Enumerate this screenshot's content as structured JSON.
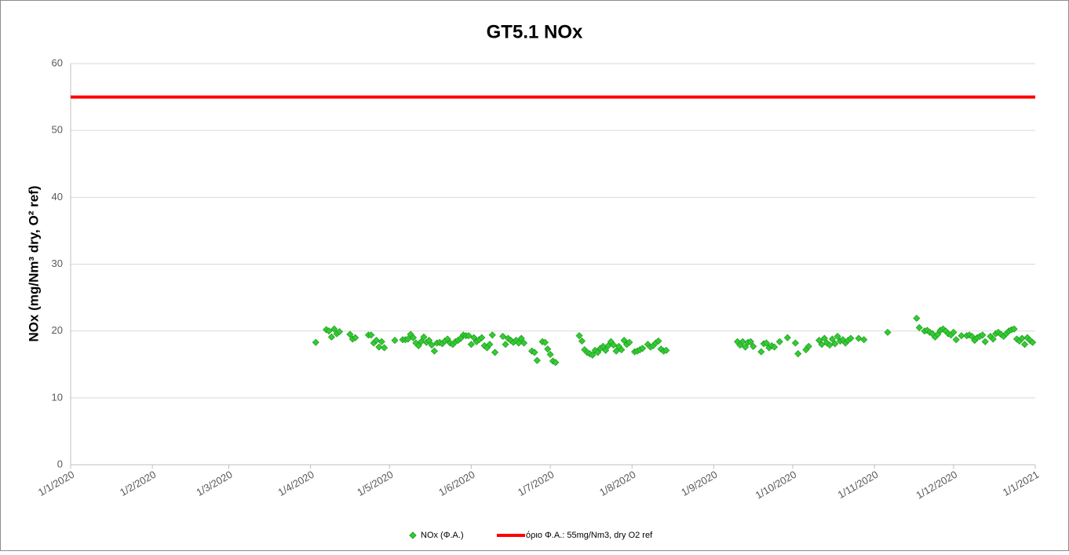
{
  "chart_data": {
    "type": "scatter",
    "title": "GT5.1 NOx",
    "y_label": "NOx (mg/Nm³ dry, O² ref)",
    "xlim": [
      "2020-01-01",
      "2021-01-01"
    ],
    "xticks": [
      {
        "value": "2020-01-01",
        "label": "1/1/2020"
      },
      {
        "value": "2020-02-01",
        "label": "1/2/2020"
      },
      {
        "value": "2020-03-01",
        "label": "1/3/2020"
      },
      {
        "value": "2020-04-01",
        "label": "1/4/2020"
      },
      {
        "value": "2020-05-01",
        "label": "1/5/2020"
      },
      {
        "value": "2020-06-01",
        "label": "1/6/2020"
      },
      {
        "value": "2020-07-01",
        "label": "1/7/2020"
      },
      {
        "value": "2020-08-01",
        "label": "1/8/2020"
      },
      {
        "value": "2020-09-01",
        "label": "1/9/2020"
      },
      {
        "value": "2020-10-01",
        "label": "1/10/2020"
      },
      {
        "value": "2020-11-01",
        "label": "1/11/2020"
      },
      {
        "value": "2020-12-01",
        "label": "1/12/2020"
      },
      {
        "value": "2021-01-01",
        "label": "1/1/2021"
      }
    ],
    "ylim": [
      0,
      60
    ],
    "yticks": [
      0,
      10,
      20,
      30,
      40,
      50,
      60
    ],
    "grid": true,
    "legend": "bottom",
    "series": [
      {
        "name": "NOx (Φ.Α.)",
        "type": "scatter",
        "color": "#33cc33",
        "x": [
          "2020-04-03",
          "2020-04-07",
          "2020-04-08",
          "2020-04-09",
          "2020-04-10",
          "2020-04-11",
          "2020-04-12",
          "2020-04-16",
          "2020-04-17",
          "2020-04-18",
          "2020-04-23",
          "2020-04-24",
          "2020-04-25",
          "2020-04-26",
          "2020-04-27",
          "2020-04-28",
          "2020-04-29",
          "2020-05-03",
          "2020-05-06",
          "2020-05-07",
          "2020-05-08",
          "2020-05-09",
          "2020-05-10",
          "2020-05-11",
          "2020-05-12",
          "2020-05-13",
          "2020-05-14",
          "2020-05-15",
          "2020-05-16",
          "2020-05-17",
          "2020-05-18",
          "2020-05-19",
          "2020-05-20",
          "2020-05-21",
          "2020-05-22",
          "2020-05-23",
          "2020-05-24",
          "2020-05-25",
          "2020-05-26",
          "2020-05-27",
          "2020-05-28",
          "2020-05-29",
          "2020-05-30",
          "2020-05-31",
          "2020-06-01",
          "2020-06-02",
          "2020-06-03",
          "2020-06-04",
          "2020-06-05",
          "2020-06-06",
          "2020-06-07",
          "2020-06-08",
          "2020-06-09",
          "2020-06-10",
          "2020-06-13",
          "2020-06-14",
          "2020-06-15",
          "2020-06-16",
          "2020-06-17",
          "2020-06-18",
          "2020-06-19",
          "2020-06-20",
          "2020-06-21",
          "2020-06-24",
          "2020-06-25",
          "2020-06-26",
          "2020-06-28",
          "2020-06-29",
          "2020-06-30",
          "2020-07-01",
          "2020-07-02",
          "2020-07-03",
          "2020-07-12",
          "2020-07-13",
          "2020-07-14",
          "2020-07-15",
          "2020-07-16",
          "2020-07-17",
          "2020-07-18",
          "2020-07-19",
          "2020-07-20",
          "2020-07-21",
          "2020-07-22",
          "2020-07-23",
          "2020-07-24",
          "2020-07-25",
          "2020-07-26",
          "2020-07-27",
          "2020-07-28",
          "2020-07-29",
          "2020-07-30",
          "2020-07-31",
          "2020-08-02",
          "2020-08-03",
          "2020-08-04",
          "2020-08-05",
          "2020-08-07",
          "2020-08-08",
          "2020-08-09",
          "2020-08-10",
          "2020-08-11",
          "2020-08-12",
          "2020-08-13",
          "2020-08-14",
          "2020-09-10",
          "2020-09-11",
          "2020-09-12",
          "2020-09-13",
          "2020-09-14",
          "2020-09-15",
          "2020-09-16",
          "2020-09-19",
          "2020-09-20",
          "2020-09-21",
          "2020-09-22",
          "2020-09-23",
          "2020-09-24",
          "2020-09-26",
          "2020-09-29",
          "2020-10-02",
          "2020-10-03",
          "2020-10-06",
          "2020-10-07",
          "2020-10-11",
          "2020-10-12",
          "2020-10-13",
          "2020-10-14",
          "2020-10-15",
          "2020-10-16",
          "2020-10-17",
          "2020-10-18",
          "2020-10-19",
          "2020-10-20",
          "2020-10-21",
          "2020-10-22",
          "2020-10-23",
          "2020-10-26",
          "2020-10-28",
          "2020-11-06",
          "2020-11-17",
          "2020-11-18",
          "2020-11-20",
          "2020-11-21",
          "2020-11-22",
          "2020-11-23",
          "2020-11-24",
          "2020-11-25",
          "2020-11-26",
          "2020-11-27",
          "2020-11-28",
          "2020-11-29",
          "2020-11-30",
          "2020-12-01",
          "2020-12-02",
          "2020-12-04",
          "2020-12-06",
          "2020-12-07",
          "2020-12-08",
          "2020-12-09",
          "2020-12-10",
          "2020-12-11",
          "2020-12-12",
          "2020-12-13",
          "2020-12-15",
          "2020-12-16",
          "2020-12-17",
          "2020-12-18",
          "2020-12-19",
          "2020-12-20",
          "2020-12-21",
          "2020-12-22",
          "2020-12-23",
          "2020-12-24",
          "2020-12-25",
          "2020-12-26",
          "2020-12-27",
          "2020-12-28",
          "2020-12-29",
          "2020-12-30",
          "2020-12-31"
        ],
        "values": [
          18.3,
          20.2,
          20.0,
          19.1,
          20.3,
          19.6,
          19.9,
          19.5,
          18.8,
          19.0,
          19.4,
          19.4,
          18.2,
          18.6,
          17.6,
          18.4,
          17.5,
          18.6,
          18.7,
          18.7,
          18.8,
          19.5,
          19.0,
          18.2,
          17.8,
          18.4,
          19.1,
          18.3,
          18.6,
          17.9,
          17.0,
          18.2,
          18.3,
          18.1,
          18.5,
          18.8,
          18.2,
          18.0,
          18.4,
          18.6,
          18.9,
          19.4,
          19.3,
          19.3,
          18.0,
          19.0,
          18.4,
          18.7,
          19.0,
          17.8,
          17.5,
          18.0,
          19.4,
          16.8,
          19.2,
          18.0,
          18.9,
          18.6,
          18.3,
          18.6,
          18.2,
          18.9,
          18.2,
          17.0,
          16.8,
          15.6,
          18.4,
          18.3,
          17.3,
          16.5,
          15.5,
          15.3,
          19.3,
          18.5,
          17.2,
          16.8,
          16.6,
          16.4,
          17.1,
          16.8,
          17.4,
          17.7,
          17.1,
          17.8,
          18.4,
          17.9,
          17.0,
          17.7,
          17.2,
          18.6,
          18.0,
          18.3,
          16.9,
          17.0,
          17.2,
          17.4,
          18.0,
          17.6,
          17.8,
          18.2,
          18.5,
          17.3,
          17.0,
          17.1,
          18.4,
          17.9,
          18.4,
          17.6,
          18.3,
          18.4,
          17.7,
          16.9,
          18.1,
          18.2,
          17.5,
          17.8,
          17.6,
          18.4,
          19.0,
          18.2,
          16.6,
          17.2,
          17.7,
          18.6,
          18.0,
          18.9,
          18.2,
          17.9,
          18.8,
          18.1,
          19.2,
          18.5,
          18.7,
          18.2,
          18.6,
          18.9,
          18.9,
          18.7,
          19.8,
          21.9,
          20.5,
          20.0,
          20.1,
          19.8,
          19.6,
          19.1,
          19.5,
          20.1,
          20.3,
          20.0,
          19.6,
          19.4,
          19.8,
          18.7,
          19.3,
          19.3,
          19.4,
          19.2,
          18.6,
          19.0,
          19.2,
          19.4,
          18.4,
          19.2,
          18.8,
          19.6,
          19.8,
          19.5,
          19.2,
          19.6,
          20.0,
          20.2,
          20.3,
          18.8,
          18.5,
          18.9,
          18.0,
          19.0,
          18.6,
          18.3
        ]
      },
      {
        "name": "όριο Φ.Α.: 55mg/Nm3, dry O2 ref",
        "type": "line",
        "color": "#ff0000",
        "x": [
          "2020-01-01",
          "2021-01-01"
        ],
        "values": [
          55,
          55
        ]
      }
    ]
  }
}
